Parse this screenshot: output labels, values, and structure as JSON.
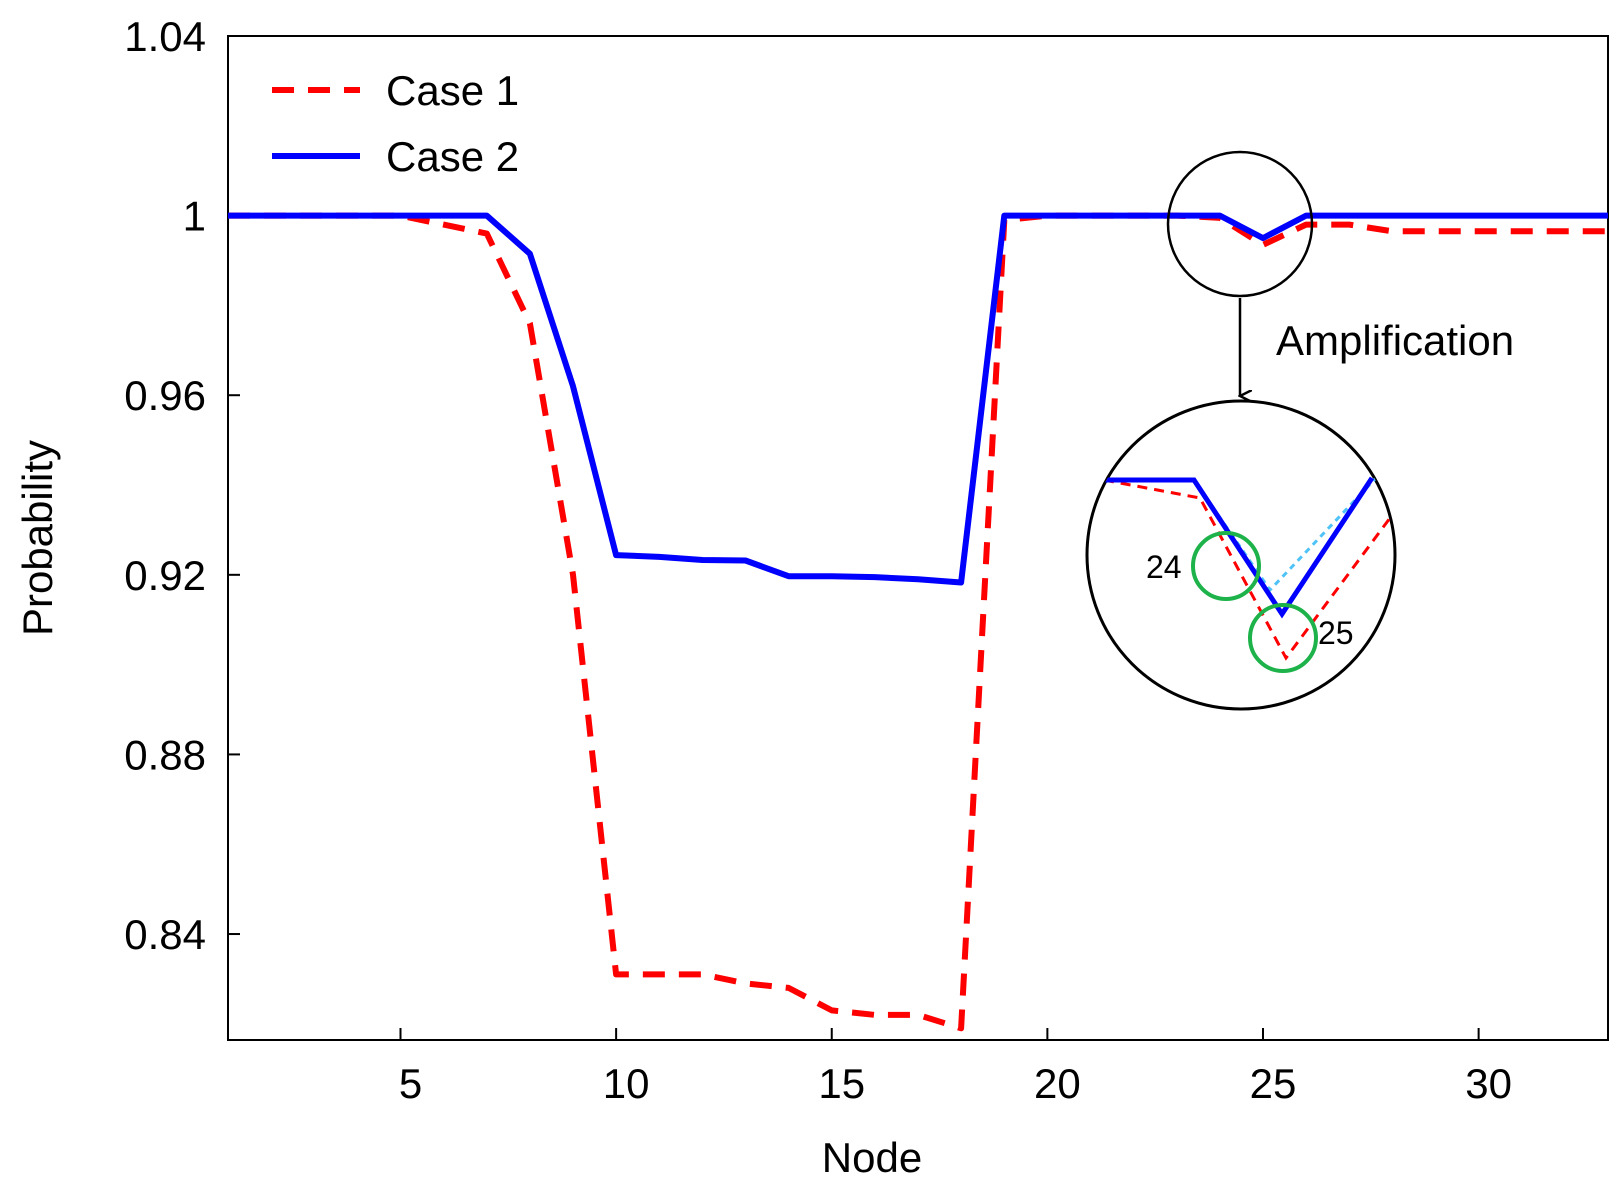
{
  "chart_data": {
    "type": "line",
    "title": "",
    "xlabel": "Node",
    "ylabel": "Probability",
    "xlim": [
      1,
      33
    ],
    "ylim": [
      0.8164,
      1.04
    ],
    "xticks": [
      5,
      10,
      15,
      20,
      25,
      30
    ],
    "yticks": [
      0.84,
      0.88,
      0.92,
      0.96,
      1,
      1.04
    ],
    "xtick_labels": [
      "5",
      "10",
      "15",
      "20",
      "25",
      "30"
    ],
    "ytick_labels": [
      "0.84",
      "0.88",
      "0.92",
      "0.96",
      "1",
      "1.04"
    ],
    "grid": false,
    "legend_position": "top-left",
    "x": [
      1,
      2,
      3,
      4,
      5,
      6,
      7,
      8,
      9,
      10,
      11,
      12,
      13,
      14,
      15,
      16,
      17,
      18,
      19,
      20,
      21,
      22,
      23,
      24,
      25,
      26,
      27,
      28,
      29,
      30,
      31,
      32,
      33
    ],
    "series": [
      {
        "name": "Case 1",
        "color": "#ff0000",
        "style": "dashed",
        "values": [
          1,
          1,
          1,
          1,
          1,
          0.998,
          0.996,
          0.976,
          0.92,
          0.831,
          0.831,
          0.831,
          0.829,
          0.828,
          0.823,
          0.822,
          0.822,
          0.819,
          0.999,
          1,
          1,
          1,
          1,
          0.9995,
          0.9935,
          0.998,
          0.998,
          0.9965,
          0.9965,
          0.9965,
          0.9965,
          0.9965,
          0.9965
        ]
      },
      {
        "name": "Case 2",
        "color": "#0000ff",
        "style": "solid",
        "values": [
          1,
          1,
          1,
          1,
          1,
          1,
          1,
          0.9915,
          0.962,
          0.9244,
          0.924,
          0.9233,
          0.9232,
          0.9197,
          0.9197,
          0.9195,
          0.919,
          0.9183,
          1,
          1,
          1,
          1,
          1,
          1,
          0.995,
          1,
          1,
          1,
          1,
          1,
          1,
          1,
          1
        ]
      }
    ],
    "annotations": {
      "amplification_label": "Amplification",
      "zoom_label_24": "24",
      "zoom_label_25": "25"
    }
  }
}
